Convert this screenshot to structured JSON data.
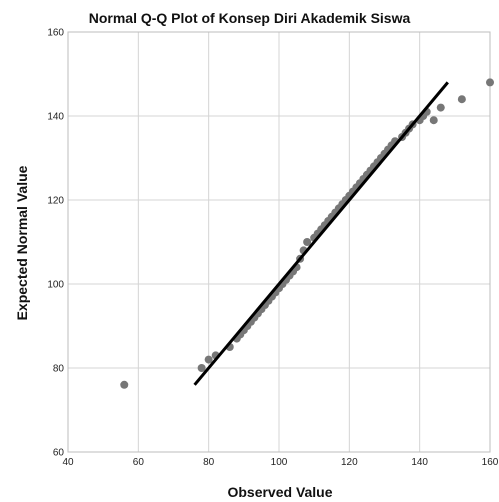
{
  "chart_data": {
    "type": "scatter",
    "title": "Normal Q-Q Plot of Konsep Diri Akademik Siswa",
    "xlabel": "Observed Value",
    "ylabel": "Expected Normal Value",
    "xlim": [
      40,
      160
    ],
    "ylim": [
      60,
      160
    ],
    "xticks": [
      "40",
      "60",
      "80",
      "100",
      "120",
      "140",
      "160"
    ],
    "yticks": [
      "60",
      "80",
      "100",
      "120",
      "140",
      "160"
    ],
    "grid": true,
    "legend": "none",
    "point_color": "#777777",
    "line_color": "#000000",
    "reference_line": [
      [
        76,
        76
      ],
      [
        148,
        148
      ]
    ],
    "points": [
      [
        56,
        76
      ],
      [
        78,
        80
      ],
      [
        80,
        82
      ],
      [
        82,
        83
      ],
      [
        86,
        85
      ],
      [
        88,
        87
      ],
      [
        89,
        88
      ],
      [
        90,
        89
      ],
      [
        91,
        90
      ],
      [
        92,
        91
      ],
      [
        93,
        92
      ],
      [
        94,
        93
      ],
      [
        95,
        94
      ],
      [
        96,
        95
      ],
      [
        97,
        96
      ],
      [
        98,
        97
      ],
      [
        99,
        98
      ],
      [
        100,
        99
      ],
      [
        101,
        100
      ],
      [
        102,
        101
      ],
      [
        103,
        102
      ],
      [
        104,
        103
      ],
      [
        105,
        104
      ],
      [
        106,
        106
      ],
      [
        107,
        108
      ],
      [
        108,
        110
      ],
      [
        110,
        111
      ],
      [
        111,
        112
      ],
      [
        112,
        113
      ],
      [
        113,
        114
      ],
      [
        114,
        115
      ],
      [
        115,
        116
      ],
      [
        116,
        117
      ],
      [
        117,
        118
      ],
      [
        118,
        119
      ],
      [
        119,
        120
      ],
      [
        120,
        121
      ],
      [
        121,
        122
      ],
      [
        122,
        123
      ],
      [
        123,
        124
      ],
      [
        124,
        125
      ],
      [
        125,
        126
      ],
      [
        126,
        127
      ],
      [
        127,
        128
      ],
      [
        128,
        129
      ],
      [
        129,
        130
      ],
      [
        130,
        131
      ],
      [
        131,
        132
      ],
      [
        132,
        133
      ],
      [
        133,
        134
      ],
      [
        135,
        135
      ],
      [
        136,
        136
      ],
      [
        137,
        137
      ],
      [
        138,
        138
      ],
      [
        140,
        139
      ],
      [
        141,
        140
      ],
      [
        142,
        141
      ],
      [
        144,
        139
      ],
      [
        146,
        142
      ],
      [
        152,
        144
      ],
      [
        160,
        148
      ]
    ]
  }
}
